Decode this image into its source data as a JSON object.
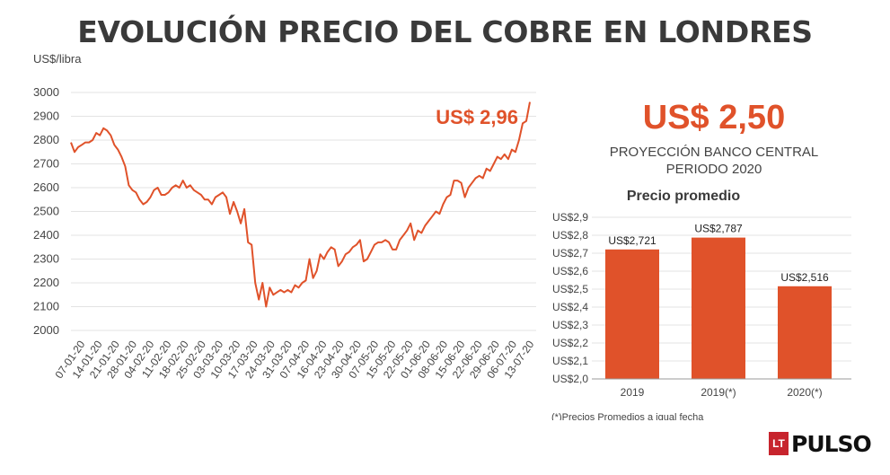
{
  "header": {
    "title": "EVOLUCIÓN PRECIO DEL COBRE EN LONDRES"
  },
  "projection": {
    "value": "US$ 2,50",
    "label_line1": "PROYECCIÓN BANCO CENTRAL",
    "label_line2": "PERIODO 2020"
  },
  "footnote": "(*)Precios Promedios a igual fecha",
  "logo": {
    "mark": "LT",
    "name": "PULSO"
  },
  "colors": {
    "accent": "#e0522a",
    "bar": "#e0522a",
    "grid": "#e3e3e3",
    "text": "#444444"
  },
  "chart_data": [
    {
      "type": "line",
      "title": "",
      "ylabel": "US$/libra",
      "ylim": [
        2000,
        3000
      ],
      "yticks": [
        2000,
        2100,
        2200,
        2300,
        2400,
        2500,
        2600,
        2700,
        2800,
        2900,
        3000
      ],
      "x_tick_labels": [
        "07-01-20",
        "14-01-20",
        "21-01-20",
        "28-01-20",
        "04-02-20",
        "11-02-20",
        "18-02-20",
        "25-02-20",
        "03-03-20",
        "10-03-20",
        "17-03-20",
        "24-03-20",
        "31-03-20",
        "07-04-20",
        "16-04-20",
        "23-04-20",
        "30-04-20",
        "07-05-20",
        "15-05-20",
        "22-05-20",
        "01-06-20",
        "08-06-20",
        "15-06-20",
        "22-06-20",
        "29-06-20",
        "06-07-20",
        "13-07-20"
      ],
      "grid": true,
      "annotation": "US$ 2,96",
      "series": [
        {
          "values": [
            2790,
            2750,
            2770,
            2780,
            2790,
            2790,
            2800,
            2830,
            2820,
            2850,
            2840,
            2820,
            2780,
            2760,
            2730,
            2690,
            2610,
            2590,
            2580,
            2550,
            2530,
            2540,
            2560,
            2590,
            2600,
            2570,
            2570,
            2580,
            2600,
            2610,
            2600,
            2630,
            2600,
            2610,
            2590,
            2580,
            2570,
            2550,
            2550,
            2530,
            2560,
            2570,
            2580,
            2560,
            2490,
            2540,
            2500,
            2450,
            2510,
            2370,
            2360,
            2200,
            2130,
            2200,
            2100,
            2180,
            2150,
            2160,
            2170,
            2160,
            2170,
            2160,
            2190,
            2180,
            2200,
            2210,
            2300,
            2220,
            2250,
            2320,
            2300,
            2330,
            2350,
            2340,
            2270,
            2290,
            2320,
            2330,
            2350,
            2360,
            2380,
            2290,
            2300,
            2330,
            2360,
            2370,
            2370,
            2380,
            2370,
            2340,
            2340,
            2380,
            2400,
            2420,
            2450,
            2380,
            2420,
            2410,
            2440,
            2460,
            2480,
            2500,
            2490,
            2530,
            2560,
            2570,
            2630,
            2630,
            2620,
            2560,
            2600,
            2620,
            2640,
            2650,
            2640,
            2680,
            2670,
            2700,
            2730,
            2720,
            2740,
            2720,
            2760,
            2750,
            2800,
            2870,
            2880,
            2960
          ]
        }
      ]
    },
    {
      "type": "bar",
      "title": "Precio promedio",
      "categories": [
        "2019",
        "2019(*)",
        "2020(*)"
      ],
      "values": [
        2.721,
        2.787,
        2.516
      ],
      "data_labels": [
        "US$2,721",
        "US$2,787",
        "US$2,516"
      ],
      "ylim": [
        2.0,
        2.9
      ],
      "ytick_labels": [
        "US$2,0",
        "US$2,1",
        "US$2,2",
        "US$2,3",
        "US$2,4",
        "US$2,5",
        "US$2,6",
        "US$2,7",
        "US$2,8",
        "US$2,9"
      ],
      "grid": true
    }
  ]
}
